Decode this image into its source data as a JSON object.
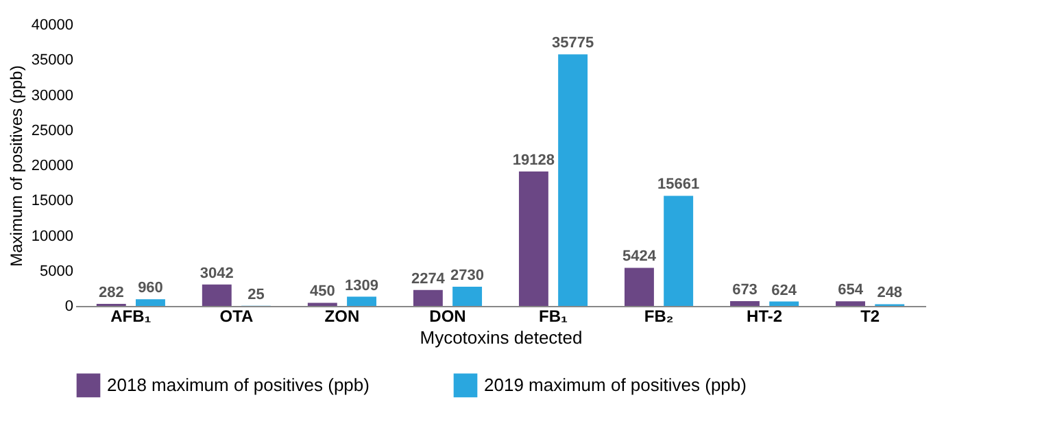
{
  "chart_data": {
    "type": "bar",
    "xlabel": "Mycotoxins detected",
    "ylabel": "Maximum of positives (ppb)",
    "categories": [
      "AFB₁",
      "OTA",
      "ZON",
      "DON",
      "FB₁",
      "FB₂",
      "HT-2",
      "T2"
    ],
    "series": [
      {
        "name": "2018 maximum of positives (ppb)",
        "color": "#6b4785",
        "values": [
          282,
          3042,
          450,
          2274,
          19128,
          5424,
          673,
          654
        ]
      },
      {
        "name": "2019 maximum of positives (ppb)",
        "color": "#2aa7df",
        "values": [
          960,
          25,
          1309,
          2730,
          35775,
          15661,
          624,
          248
        ]
      }
    ],
    "ylim": [
      0,
      40000
    ],
    "yticks": [
      0,
      5000,
      10000,
      15000,
      20000,
      25000,
      30000,
      35000,
      40000
    ],
    "data_labels": true,
    "grid": false,
    "legend": "bottom"
  }
}
